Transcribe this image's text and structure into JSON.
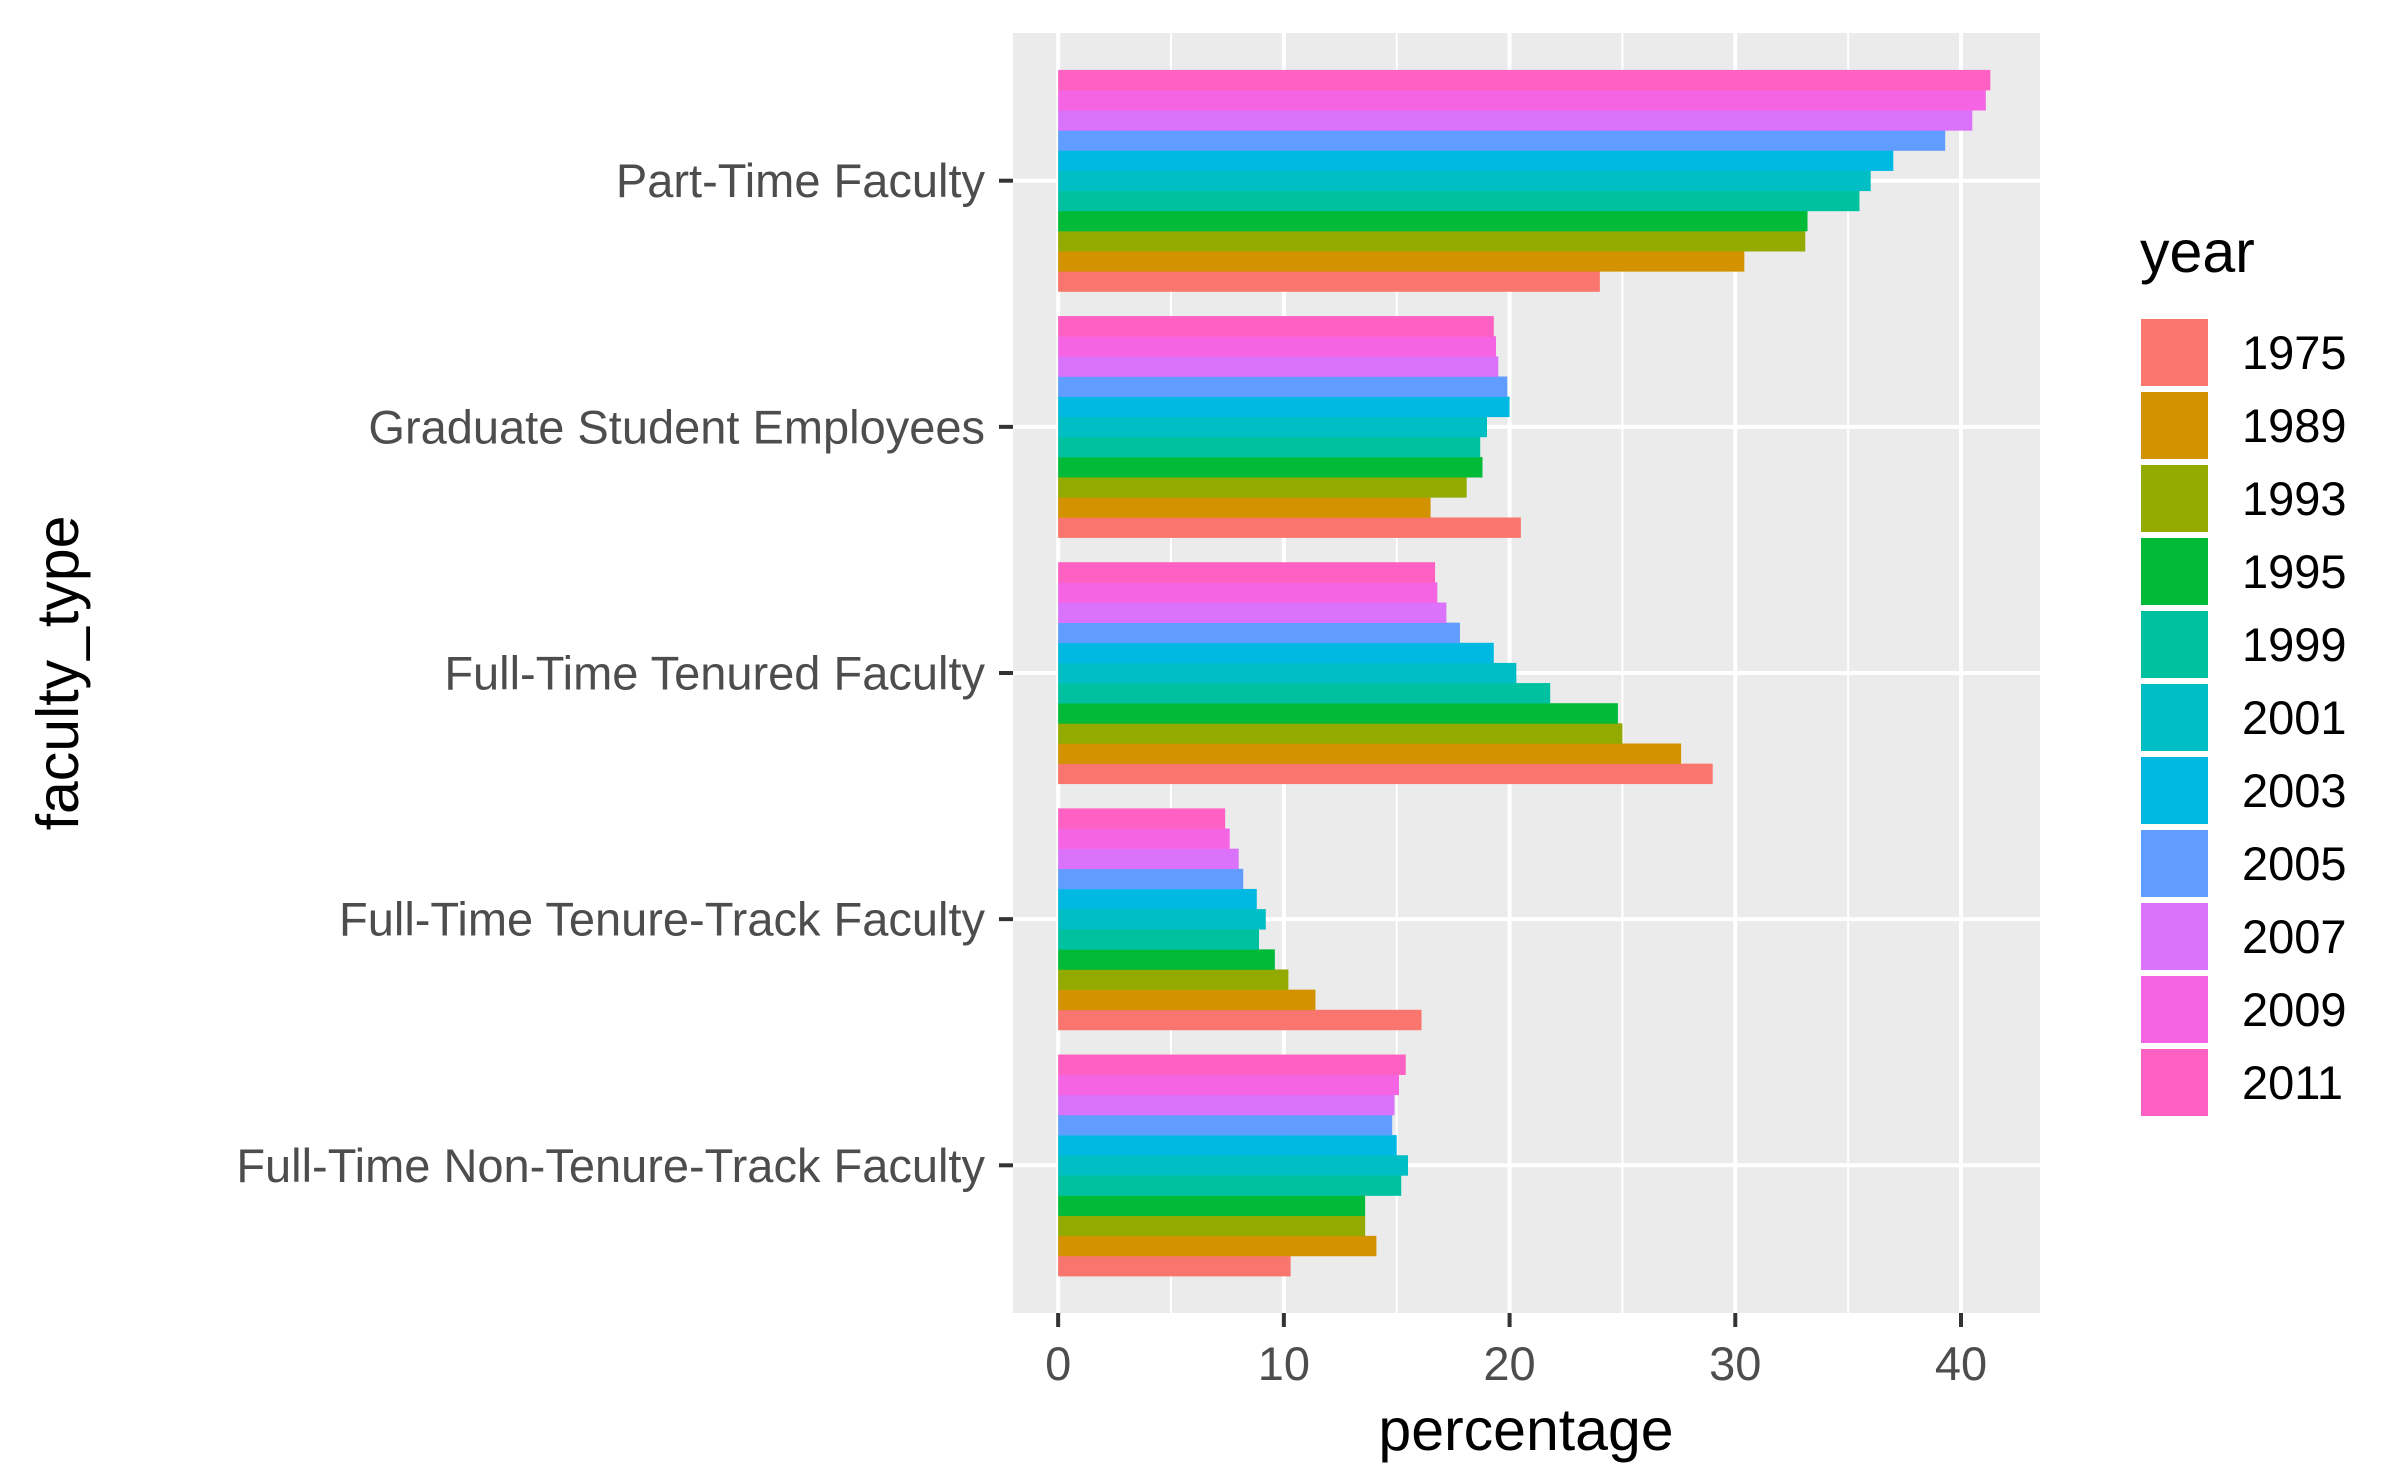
{
  "chart_data": {
    "type": "bar",
    "orientation": "horizontal",
    "xlabel": "percentage",
    "ylabel": "faculty_type",
    "xlim": [
      -2,
      43.5
    ],
    "x_ticks": [
      0,
      10,
      20,
      30,
      40
    ],
    "grid": true,
    "categories": [
      "Full-Time Non-Tenure-Track Faculty",
      "Full-Time Tenure-Track Faculty",
      "Full-Time Tenured Faculty",
      "Graduate Student Employees",
      "Part-Time Faculty"
    ],
    "legend": {
      "title": "year",
      "position": "right"
    },
    "series": [
      {
        "name": "1975",
        "color": "#F8766D",
        "values": [
          10.3,
          16.1,
          29.0,
          20.5,
          24.0
        ]
      },
      {
        "name": "1989",
        "color": "#D39200",
        "values": [
          14.1,
          11.4,
          27.6,
          16.5,
          30.4
        ]
      },
      {
        "name": "1993",
        "color": "#93AA00",
        "values": [
          13.6,
          10.2,
          25.0,
          18.1,
          33.1
        ]
      },
      {
        "name": "1995",
        "color": "#00BA38",
        "values": [
          13.6,
          9.6,
          24.8,
          18.8,
          33.2
        ]
      },
      {
        "name": "1999",
        "color": "#00C19F",
        "values": [
          15.2,
          8.9,
          21.8,
          18.7,
          35.5
        ]
      },
      {
        "name": "2001",
        "color": "#00BFC4",
        "values": [
          15.5,
          9.2,
          20.3,
          19.0,
          36.0
        ]
      },
      {
        "name": "2003",
        "color": "#00B9E3",
        "values": [
          15.0,
          8.8,
          19.3,
          20.0,
          37.0
        ]
      },
      {
        "name": "2005",
        "color": "#619CFF",
        "values": [
          14.8,
          8.2,
          17.8,
          19.9,
          39.3
        ]
      },
      {
        "name": "2007",
        "color": "#DB72FB",
        "values": [
          14.9,
          8.0,
          17.2,
          19.5,
          40.5
        ]
      },
      {
        "name": "2009",
        "color": "#F564E3",
        "values": [
          15.1,
          7.6,
          16.8,
          19.4,
          41.1
        ]
      },
      {
        "name": "2011",
        "color": "#FF61C3",
        "values": [
          15.4,
          7.4,
          16.7,
          19.3,
          41.3
        ]
      }
    ]
  }
}
